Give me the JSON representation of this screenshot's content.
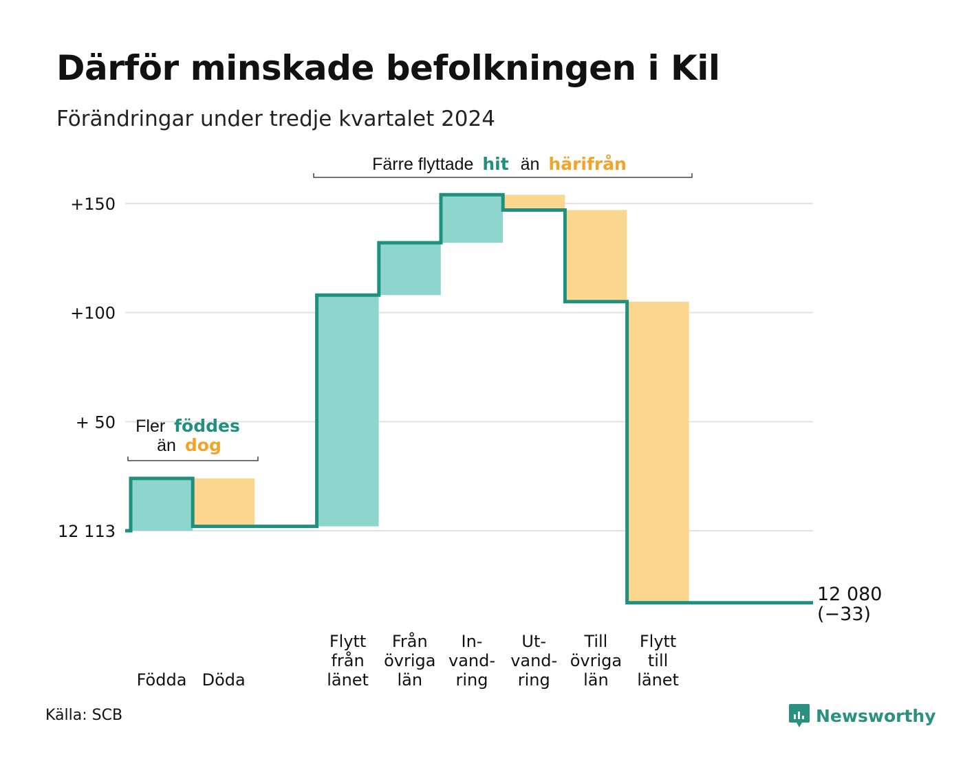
{
  "title": "Därför minskade befolkningen i Kil",
  "subtitle": "Förändringar under tredje kvartalet 2024",
  "source": "Källa: SCB",
  "brand": "Newsworthy",
  "colors": {
    "increase": "#8ed6cd",
    "decrease": "#fbd68e",
    "line": "#1f9080",
    "hit": "#1f9080",
    "away": "#f0a52a",
    "grid": "#e2e2e2"
  },
  "chart_data": {
    "type": "waterfall",
    "start_value": 12113,
    "end_value": 12080,
    "end_label": "12 080",
    "end_change_label": "(−33)",
    "y_range_relative": [
      -33,
      155
    ],
    "y_ticks": [
      {
        "value": 0,
        "label": "12 113"
      },
      {
        "value": 50,
        "label": "+ 50"
      },
      {
        "value": 100,
        "label": "+100"
      },
      {
        "value": 150,
        "label": "+150"
      }
    ],
    "steps": [
      {
        "label_lines": [
          "Födda"
        ],
        "change": 24,
        "kind": "increase"
      },
      {
        "label_lines": [
          "Döda"
        ],
        "change": -22,
        "kind": "decrease"
      },
      {
        "label_lines": [
          ""
        ],
        "change": 0,
        "kind": "gap"
      },
      {
        "label_lines": [
          "Flytt",
          "från",
          "länet"
        ],
        "change": 106,
        "kind": "increase"
      },
      {
        "label_lines": [
          "Från",
          "övriga",
          "län"
        ],
        "change": 24,
        "kind": "increase"
      },
      {
        "label_lines": [
          "In-",
          "vand-",
          "ring"
        ],
        "change": 22,
        "kind": "increase"
      },
      {
        "label_lines": [
          "Ut-",
          "vand-",
          "ring"
        ],
        "change": -7,
        "kind": "decrease"
      },
      {
        "label_lines": [
          "Till",
          "övriga",
          "län"
        ],
        "change": -42,
        "kind": "decrease"
      },
      {
        "label_lines": [
          "Flytt",
          "till",
          "länet"
        ],
        "change": -138,
        "kind": "decrease"
      }
    ],
    "annotations": {
      "natural": {
        "prefix": "Fler",
        "hit_word": "föddes",
        "mid": "än",
        "away_word": "dog"
      },
      "migration": {
        "prefix": "Färre flyttade",
        "hit_word": "hit",
        "mid": "än",
        "away_word": "härifrån"
      }
    },
    "grid": true
  }
}
